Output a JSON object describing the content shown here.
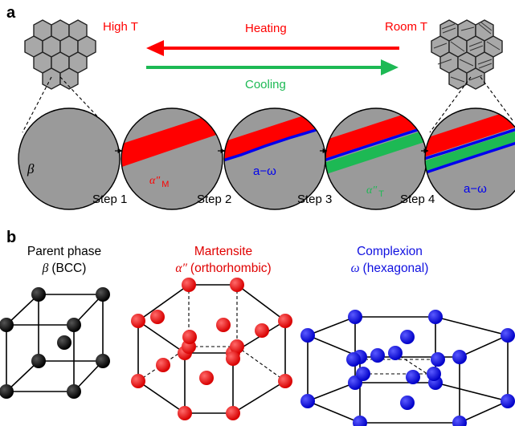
{
  "panel_a": {
    "letter": "a",
    "high_t": "High T",
    "room_t": "Room T",
    "heating": "Heating",
    "cooling": "Cooling",
    "beta_symbol": "β",
    "alpha_m_label": "α″",
    "alpha_m_sub": "M",
    "a_omega_label": "a−ω",
    "alpha_t_label": "α″",
    "alpha_t_sub": "T",
    "a_omega_label_2": "a−ω",
    "steps": [
      "Step 1",
      "Step 2",
      "Step 3",
      "Step 4"
    ],
    "colors": {
      "red": "#ff0000",
      "green": "#1db954",
      "blue": "#0000ee",
      "grain_gray": "#a8a8a8",
      "circle_gray": "#9a9a9a"
    }
  },
  "panel_b": {
    "letter": "b",
    "parent_title": "Parent phase",
    "parent_symbol": "β",
    "parent_sub": "(BCC)",
    "martensite_title": "Martensite",
    "martensite_symbol": "α″",
    "martensite_sub": "(orthorhombic)",
    "complexion_title": "Complexion",
    "complexion_symbol": "ω",
    "complexion_sub": "(hexagonal)",
    "colors": {
      "parent": "#000000",
      "martensite": "#e00000",
      "complexion": "#1010e0"
    }
  }
}
